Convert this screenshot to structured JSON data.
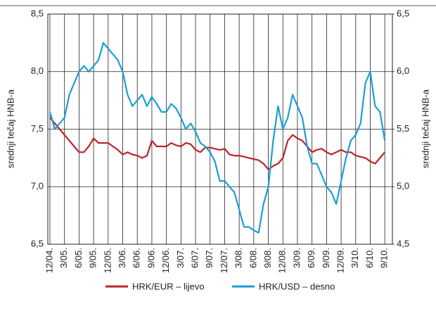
{
  "chart_data": {
    "type": "line",
    "y_label": "srednji tečaj HNB-a",
    "y2_label": "srednji tečaj HNB-a",
    "categories": [
      "12/04.",
      null,
      null,
      "3/05.",
      null,
      null,
      "6/05.",
      null,
      null,
      "9/05.",
      null,
      null,
      "12/05.",
      null,
      null,
      "3/06.",
      null,
      null,
      "6/06.",
      null,
      null,
      "9/06.",
      null,
      null,
      "12/06.",
      null,
      null,
      "3/07.",
      null,
      null,
      "6/07.",
      null,
      null,
      "9/07.",
      null,
      null,
      "12/07.",
      null,
      null,
      "3/08.",
      null,
      null,
      "6/08.",
      null,
      null,
      "9/08.",
      null,
      null,
      "12/08.",
      null,
      null,
      "3/09.",
      null,
      null,
      "6/09.",
      null,
      null,
      "9/09.",
      null,
      null,
      "12/09.",
      null,
      null,
      "3/10.",
      null,
      null,
      "6/10.",
      null,
      null,
      "9/10."
    ],
    "series": [
      {
        "name": "HRK/EUR – lijevo",
        "color": "#b8262b",
        "axis": "y",
        "values": [
          7.6,
          7.55,
          7.5,
          7.45,
          7.4,
          7.35,
          7.3,
          7.3,
          7.35,
          7.42,
          7.38,
          7.38,
          7.38,
          7.35,
          7.32,
          7.28,
          7.3,
          7.28,
          7.27,
          7.25,
          7.27,
          7.4,
          7.35,
          7.35,
          7.35,
          7.38,
          7.36,
          7.35,
          7.38,
          7.37,
          7.32,
          7.3,
          7.34,
          7.34,
          7.33,
          7.32,
          7.33,
          7.28,
          7.27,
          7.27,
          7.26,
          7.25,
          7.24,
          7.23,
          7.2,
          7.15,
          7.18,
          7.2,
          7.25,
          7.4,
          7.45,
          7.42,
          7.4,
          7.35,
          7.3,
          7.32,
          7.33,
          7.3,
          7.28,
          7.3,
          7.32,
          7.3,
          7.3,
          7.27,
          7.26,
          7.25,
          7.22,
          7.2,
          7.25,
          7.3
        ]
      },
      {
        "name": "HRK/USD – desno",
        "color": "#1a9fd6",
        "axis": "y2",
        "values": [
          5.65,
          5.5,
          5.55,
          5.6,
          5.8,
          5.9,
          6.0,
          6.05,
          6.0,
          6.05,
          6.1,
          6.25,
          6.2,
          6.15,
          6.1,
          6.0,
          5.8,
          5.7,
          5.75,
          5.8,
          5.7,
          5.78,
          5.72,
          5.65,
          5.65,
          5.72,
          5.68,
          5.6,
          5.5,
          5.55,
          5.48,
          5.38,
          5.35,
          5.3,
          5.22,
          5.05,
          5.05,
          5.0,
          4.95,
          4.8,
          4.65,
          4.65,
          4.62,
          4.6,
          4.85,
          5.0,
          5.4,
          5.7,
          5.5,
          5.6,
          5.8,
          5.7,
          5.6,
          5.35,
          5.2,
          5.2,
          5.1,
          5.0,
          4.95,
          4.85,
          5.05,
          5.25,
          5.4,
          5.45,
          5.55,
          5.9,
          6.0,
          5.7,
          5.65,
          5.4
        ]
      }
    ],
    "ylim": [
      6.5,
      8.5
    ],
    "yticks": [
      {
        "value": 6.5,
        "label": "6,5"
      },
      {
        "value": 7.0,
        "label": "7,0"
      },
      {
        "value": 7.5,
        "label": "7,5"
      },
      {
        "value": 8.0,
        "label": "8,0"
      },
      {
        "value": 8.5,
        "label": "8,5"
      }
    ],
    "y2lim": [
      4.5,
      6.5
    ],
    "y2ticks": [
      {
        "value": 4.5,
        "label": "4,5"
      },
      {
        "value": 5.0,
        "label": "5,0"
      },
      {
        "value": 5.5,
        "label": "5,5"
      },
      {
        "value": 6.0,
        "label": "6,0"
      },
      {
        "value": 6.5,
        "label": "6,5"
      }
    ],
    "grid": true
  }
}
